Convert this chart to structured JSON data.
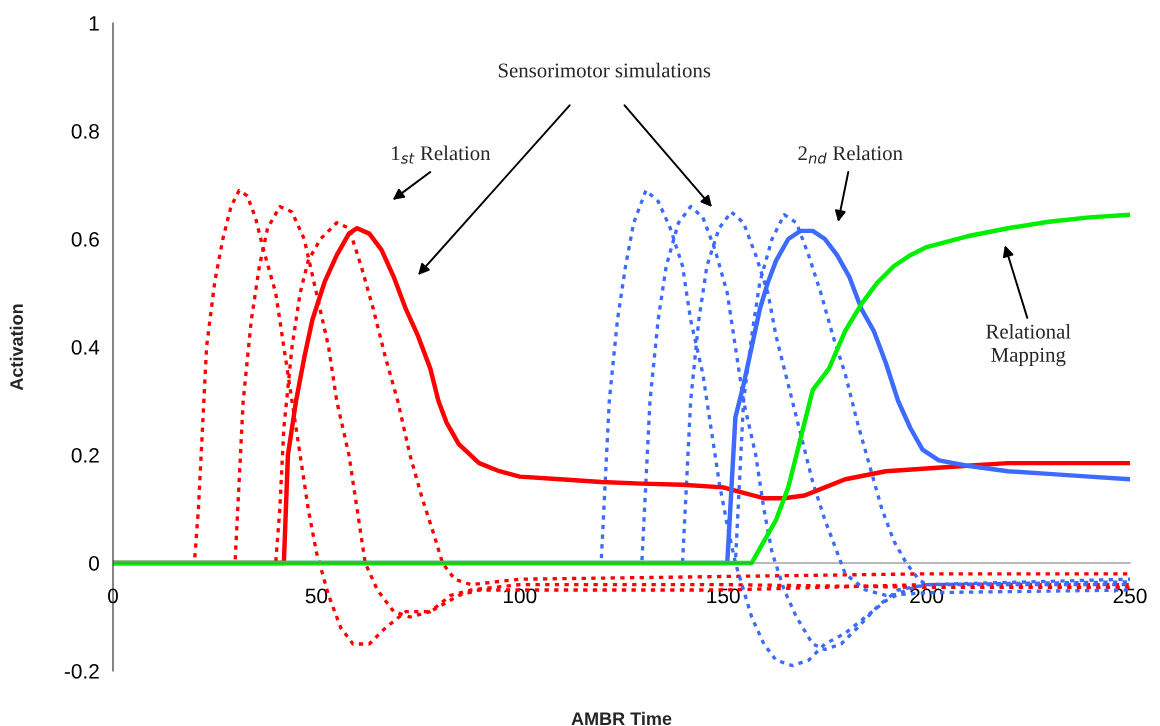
{
  "chart_data": {
    "type": "line",
    "xlabel": "AMBR Time",
    "ylabel": "Activation",
    "xlim": [
      0,
      250
    ],
    "xticks": [
      0,
      50,
      100,
      150,
      200,
      250
    ],
    "ylim": [
      -0.2,
      1
    ],
    "yticks": [
      -0.2,
      0,
      0.2,
      0.4,
      0.6,
      0.8,
      1
    ],
    "grid": false,
    "legend": false,
    "annotations": [
      "Sensorimotor simulations",
      "1$_{st}$ Relation",
      "2$_{nd}$ Relation",
      "Relational\nMapping"
    ],
    "series": [
      {
        "color": "#ff0000",
        "line_style": "dashed",
        "x": [
          0,
          20,
          21,
          22,
          23,
          25,
          27,
          29,
          31,
          33,
          35,
          37,
          40,
          42,
          44,
          46,
          48,
          50,
          53,
          56,
          59,
          63,
          67,
          72,
          78,
          85,
          90,
          120,
          150,
          200,
          250
        ],
        "values": [
          0,
          0,
          0.1,
          0.25,
          0.4,
          0.52,
          0.6,
          0.66,
          0.69,
          0.68,
          0.64,
          0.58,
          0.5,
          0.4,
          0.3,
          0.2,
          0.1,
          0.02,
          -0.06,
          -0.12,
          -0.15,
          -0.15,
          -0.12,
          -0.09,
          -0.09,
          -0.06,
          -0.05,
          -0.05,
          -0.05,
          -0.04,
          -0.04
        ]
      },
      {
        "color": "#ff0000",
        "line_style": "dashed",
        "x": [
          0,
          30,
          31,
          32,
          34,
          36,
          38,
          41,
          44,
          47,
          50,
          53,
          55,
          58,
          60,
          62,
          65,
          69,
          73,
          78,
          83,
          88,
          100,
          150,
          200,
          250
        ],
        "values": [
          0,
          0,
          0.15,
          0.3,
          0.45,
          0.55,
          0.62,
          0.66,
          0.65,
          0.6,
          0.5,
          0.4,
          0.3,
          0.2,
          0.1,
          0,
          -0.05,
          -0.09,
          -0.1,
          -0.09,
          -0.06,
          -0.05,
          -0.04,
          -0.04,
          -0.045,
          -0.045
        ]
      },
      {
        "color": "#ff0000",
        "line_style": "dashed",
        "x": [
          0,
          40,
          41,
          42,
          44,
          46,
          48,
          51,
          55,
          58,
          61,
          64,
          67,
          70,
          73,
          76,
          79,
          81,
          84,
          88,
          100,
          150,
          200,
          250
        ],
        "values": [
          0,
          0,
          0.1,
          0.25,
          0.4,
          0.5,
          0.56,
          0.6,
          0.63,
          0.62,
          0.55,
          0.47,
          0.38,
          0.3,
          0.2,
          0.12,
          0.05,
          0,
          -0.03,
          -0.04,
          -0.03,
          -0.025,
          -0.02,
          -0.02
        ]
      },
      {
        "color": "#3d6bff",
        "line_style": "dashed",
        "x": [
          0,
          120,
          121,
          122,
          124,
          126,
          128,
          131,
          134,
          137,
          140,
          142,
          145,
          147,
          149,
          151,
          153,
          155,
          157,
          160,
          163,
          167,
          171,
          175,
          180,
          185,
          190,
          195,
          200,
          250
        ],
        "values": [
          0,
          0,
          0.15,
          0.3,
          0.45,
          0.55,
          0.63,
          0.69,
          0.67,
          0.62,
          0.55,
          0.45,
          0.35,
          0.25,
          0.15,
          0.07,
          0,
          -0.05,
          -0.1,
          -0.15,
          -0.18,
          -0.19,
          -0.18,
          -0.15,
          -0.13,
          -0.1,
          -0.07,
          -0.05,
          -0.04,
          -0.04
        ]
      },
      {
        "color": "#3d6bff",
        "line_style": "dashed",
        "x": [
          0,
          130,
          131,
          132,
          134,
          136,
          139,
          142,
          145,
          148,
          151,
          153,
          155,
          158,
          160,
          162,
          165,
          168,
          172,
          175,
          179,
          183,
          188,
          193,
          200,
          250
        ],
        "values": [
          0,
          0,
          0.15,
          0.3,
          0.45,
          0.55,
          0.63,
          0.66,
          0.64,
          0.58,
          0.5,
          0.4,
          0.3,
          0.2,
          0.1,
          0.02,
          -0.05,
          -0.1,
          -0.15,
          -0.16,
          -0.15,
          -0.12,
          -0.08,
          -0.05,
          -0.04,
          -0.03
        ]
      },
      {
        "color": "#3d6bff",
        "line_style": "dashed",
        "x": [
          0,
          140,
          141,
          142,
          144,
          146,
          149,
          152,
          155,
          158,
          161,
          163,
          166,
          169,
          172,
          175,
          178,
          180,
          185,
          190,
          200,
          250
        ],
        "values": [
          0,
          0,
          0.15,
          0.3,
          0.45,
          0.55,
          0.62,
          0.65,
          0.63,
          0.57,
          0.5,
          0.42,
          0.33,
          0.24,
          0.15,
          0.08,
          0.02,
          -0.02,
          -0.05,
          -0.06,
          -0.055,
          -0.05
        ]
      },
      {
        "color": "#3d6bff",
        "line_style": "dashed",
        "x": [
          0,
          153,
          154,
          155,
          157,
          159,
          162,
          165,
          168,
          171,
          174,
          177,
          180,
          183,
          186,
          189,
          192,
          195,
          198,
          200,
          250
        ],
        "values": [
          0,
          0,
          0.15,
          0.3,
          0.42,
          0.52,
          0.6,
          0.645,
          0.63,
          0.57,
          0.5,
          0.42,
          0.35,
          0.26,
          0.18,
          0.1,
          0.04,
          0,
          -0.03,
          -0.04,
          -0.035
        ]
      },
      {
        "color": "#ff0000",
        "line_style": "solid",
        "x": [
          0,
          42,
          43,
          45,
          47,
          49,
          52,
          55,
          58,
          60,
          63,
          66,
          69,
          72,
          75,
          78,
          80,
          82,
          85,
          90,
          95,
          100,
          110,
          120,
          130,
          140,
          150,
          155,
          160,
          165,
          170,
          175,
          180,
          190,
          200,
          210,
          220,
          250
        ],
        "values": [
          0,
          0,
          0.2,
          0.3,
          0.38,
          0.45,
          0.52,
          0.57,
          0.61,
          0.62,
          0.61,
          0.58,
          0.53,
          0.47,
          0.42,
          0.36,
          0.3,
          0.26,
          0.22,
          0.185,
          0.17,
          0.16,
          0.155,
          0.15,
          0.147,
          0.145,
          0.14,
          0.13,
          0.12,
          0.12,
          0.125,
          0.14,
          0.155,
          0.17,
          0.175,
          0.18,
          0.185,
          0.185
        ]
      },
      {
        "color": "#3d6bff",
        "line_style": "solid",
        "x": [
          0,
          151,
          153,
          155,
          157,
          159,
          161,
          163,
          166,
          169,
          172,
          175,
          178,
          181,
          184,
          187,
          190,
          193,
          196,
          199,
          203,
          210,
          220,
          230,
          240,
          250
        ],
        "values": [
          0,
          0,
          0.27,
          0.33,
          0.4,
          0.47,
          0.52,
          0.56,
          0.6,
          0.615,
          0.615,
          0.6,
          0.57,
          0.53,
          0.47,
          0.43,
          0.37,
          0.3,
          0.25,
          0.21,
          0.19,
          0.18,
          0.17,
          0.165,
          0.16,
          0.155
        ]
      },
      {
        "color": "#00ee00",
        "line_style": "solid",
        "x": [
          0,
          157,
          160,
          163,
          166,
          168,
          170,
          172,
          176,
          180,
          184,
          188,
          192,
          196,
          200,
          210,
          220,
          230,
          240,
          250
        ],
        "values": [
          0,
          0,
          0.04,
          0.08,
          0.14,
          0.2,
          0.26,
          0.32,
          0.36,
          0.43,
          0.48,
          0.52,
          0.55,
          0.57,
          0.585,
          0.605,
          0.62,
          0.632,
          0.64,
          0.645
        ]
      }
    ]
  }
}
